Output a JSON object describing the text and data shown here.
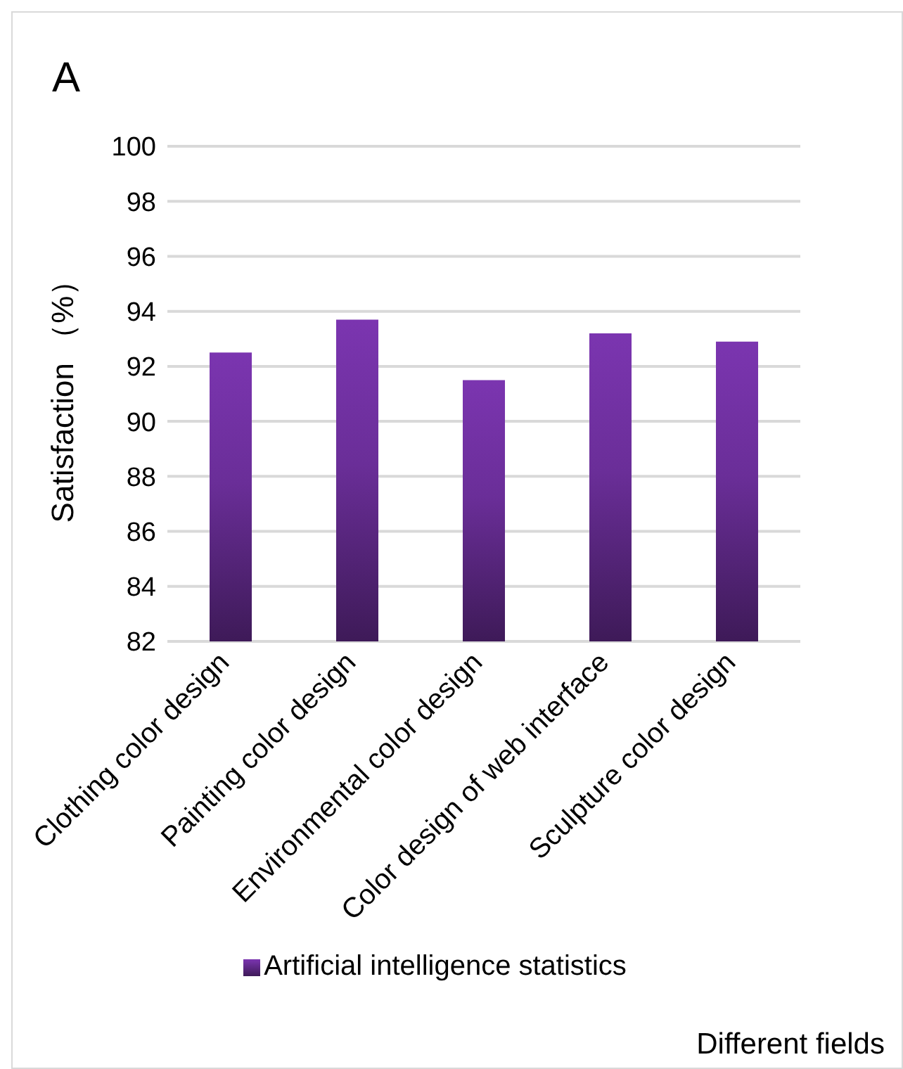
{
  "chart_data": {
    "type": "bar",
    "title": "A",
    "xlabel": "Different fields",
    "ylabel": "Satisfaction （%）",
    "categories": [
      "Clothing color design",
      "Painting color design",
      "Environmental color design",
      "Color design of web interface",
      "Sculpture color design"
    ],
    "series": [
      {
        "name": "Artificial intelligence statistics",
        "color": "#7030a0",
        "values": [
          92.5,
          93.7,
          91.5,
          93.2,
          92.9
        ]
      }
    ],
    "ylim": [
      82,
      100
    ],
    "yticks": [
      82,
      84,
      86,
      88,
      90,
      92,
      94,
      96,
      98,
      100
    ],
    "grid": "y",
    "legend": "bottom"
  }
}
